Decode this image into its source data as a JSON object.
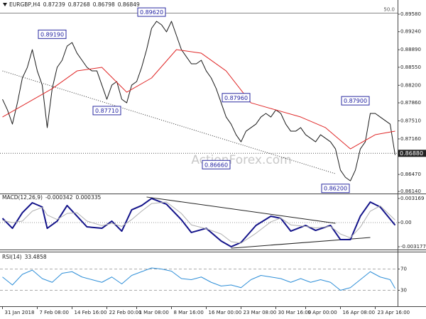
{
  "chart_data": [
    {
      "type": "line",
      "title": "EURGBP,H4",
      "ohlc": [
        0.87239,
        0.87268,
        0.86798,
        0.86849
      ],
      "watermark": "ActionForex.com",
      "xlim": [
        -0.5,
        79.5
      ],
      "ylim": [
        0.861,
        0.89745
      ],
      "yticks": [
        {
          "value": 0.8958,
          "label": "0.89580"
        },
        {
          "value": 0.8924,
          "label": "0.89240"
        },
        {
          "value": 0.8889,
          "label": "0.88890"
        },
        {
          "value": 0.8855,
          "label": "0.88550"
        },
        {
          "value": 0.882,
          "label": "0.88200"
        },
        {
          "value": 0.8786,
          "label": "0.87860"
        },
        {
          "value": 0.8751,
          "label": "0.87510"
        },
        {
          "value": 0.8716,
          "label": "0.87160"
        },
        {
          "value": 0.8647,
          "label": "0.86470"
        },
        {
          "value": 0.8614,
          "label": "0.86140"
        }
      ],
      "series": [
        {
          "color": "#1a1a1a",
          "width": 1,
          "x": [
            0,
            1,
            2,
            3,
            4,
            5,
            6,
            7,
            8,
            9,
            10,
            11,
            12,
            13,
            14,
            15,
            16,
            17,
            18,
            19,
            20,
            21,
            22,
            23,
            24,
            25,
            26,
            27,
            28,
            29,
            30,
            31,
            32,
            33,
            34,
            35,
            36,
            37,
            38,
            39,
            40,
            41,
            42,
            43,
            44,
            45,
            46,
            47,
            48,
            49,
            50,
            51,
            52,
            53,
            54,
            55,
            56,
            57,
            58,
            59,
            60,
            61,
            62,
            63,
            64,
            65,
            66,
            67,
            68,
            69,
            70,
            71,
            72,
            73,
            74,
            75,
            76,
            77,
            78,
            79
          ],
          "values": [
            0.87929,
            0.87722,
            0.87447,
            0.8786,
            0.88342,
            0.88548,
            0.88892,
            0.88479,
            0.88204,
            0.87378,
            0.88135,
            0.88548,
            0.88686,
            0.88961,
            0.8903,
            0.88823,
            0.88686,
            0.88548,
            0.88479,
            0.88479,
            0.88204,
            0.87929,
            0.88204,
            0.88273,
            0.87929,
            0.8786,
            0.88204,
            0.88273,
            0.88548,
            0.88892,
            0.89305,
            0.89442,
            0.89374,
            0.89236,
            0.89442,
            0.89167,
            0.88892,
            0.88754,
            0.88617,
            0.88617,
            0.88686,
            0.88479,
            0.88342,
            0.88135,
            0.8786,
            0.87585,
            0.87447,
            0.87241,
            0.87103,
            0.8731,
            0.87378,
            0.87447,
            0.87585,
            0.87654,
            0.87585,
            0.87722,
            0.87654,
            0.87447,
            0.8731,
            0.8731,
            0.87378,
            0.87241,
            0.87172,
            0.87103,
            0.87241,
            0.87172,
            0.87103,
            0.86966,
            0.86553,
            0.86415,
            0.86346,
            0.86553,
            0.86966,
            0.87103,
            0.87654,
            0.87654,
            0.87585,
            0.87516,
            0.87447,
            0.86849
          ]
        },
        {
          "color": "#e02828",
          "width": 1,
          "x": [
            0,
            5,
            10,
            15,
            20,
            25,
            30,
            35,
            40,
            45,
            50,
            55,
            60,
            65,
            70,
            75,
            79
          ],
          "values": [
            0.87585,
            0.8786,
            0.88135,
            0.88479,
            0.88548,
            0.88066,
            0.88342,
            0.88892,
            0.88823,
            0.88479,
            0.8786,
            0.87722,
            0.87585,
            0.87378,
            0.86966,
            0.87241,
            0.8731
          ]
        }
      ],
      "trendlines": [
        {
          "x": [
            0,
            67
          ],
          "values": [
            0.88479,
            0.86484
          ],
          "color": "#333333",
          "style": "dotted"
        }
      ],
      "hlines": [
        {
          "value": 0.8688,
          "label": "0.86880",
          "color": "#555555",
          "style": "dotted",
          "label_position": "axis"
        },
        {
          "value": 0.896,
          "label": "50.0",
          "color": "#888888",
          "style": "solid",
          "label_position": "inside"
        }
      ],
      "annotations": [
        {
          "x": 30,
          "value": 0.8962,
          "label": "0.89620"
        },
        {
          "x": 10,
          "value": 0.8919,
          "label": "0.89190"
        },
        {
          "x": 21,
          "value": 0.8771,
          "label": "0.87710"
        },
        {
          "x": 47,
          "value": 0.8796,
          "label": "0.87960"
        },
        {
          "x": 43,
          "value": 0.8666,
          "label": "0.86660"
        },
        {
          "x": 67,
          "value": 0.862,
          "label": "0.86200"
        },
        {
          "x": 71,
          "value": 0.879,
          "label": "0.87900"
        }
      ]
    },
    {
      "type": "line",
      "title": "MACD(12,26,9)",
      "xlim": [
        -0.5,
        79.5
      ],
      "ylim": [
        -0.00354,
        0.00382
      ],
      "yticks": [
        0.003169,
        {
          "value": 0,
          "label": "0.00"
        },
        -0.003177
      ],
      "series": [
        {
          "color": "#14148a",
          "width": 2,
          "x": [
            0,
            2,
            4,
            6,
            8,
            9,
            11,
            13,
            15,
            17,
            20,
            22,
            24,
            26,
            28,
            30,
            33,
            36,
            38,
            41,
            44,
            46,
            48,
            51,
            54,
            56,
            58,
            61,
            63,
            66,
            68,
            70,
            72,
            74,
            76,
            79
          ],
          "values": [
            0.00056,
            -0.00075,
            0.0013,
            0.00261,
            0.00205,
            -0.00075,
            0.00019,
            0.00224,
            0.00084,
            -0.00056,
            -0.00075,
            0.00019,
            -0.00112,
            0.00168,
            0.00224,
            0.00317,
            0.00242,
            0.00037,
            -0.0013,
            -0.00075,
            -0.00242,
            -0.00317,
            -0.00261,
            -0.00037,
            0.00084,
            0.00056,
            -0.00112,
            -0.00037,
            -0.00103,
            -0.00037,
            -0.00224,
            -0.00224,
            0.00084,
            0.0027,
            0.00205,
            -0.000342
          ]
        },
        {
          "color": "#b0b0b0",
          "width": 1,
          "x": [
            0,
            2,
            4,
            6,
            8,
            9,
            11,
            13,
            15,
            17,
            20,
            22,
            24,
            26,
            28,
            30,
            33,
            36,
            38,
            41,
            44,
            46,
            48,
            51,
            54,
            56,
            58,
            61,
            63,
            66,
            68,
            70,
            72,
            74,
            76,
            79
          ],
          "values": [
            0.0003,
            0,
            0.0002,
            0.0015,
            0.002,
            0.001,
            0.0004,
            0.0012,
            0.0013,
            0.0002,
            -0.0004,
            -0.0001,
            -0.0005,
            0.0004,
            0.0015,
            0.0025,
            0.0027,
            0.0012,
            -0.0003,
            -0.0008,
            -0.0015,
            -0.0025,
            -0.0027,
            -0.0014,
            0.0001,
            0.0006,
            -0.0003,
            -0.0005,
            -0.0007,
            -0.0005,
            -0.0015,
            -0.002,
            -0.0006,
            0.0015,
            0.0022,
            0.000335
          ]
        }
      ],
      "trendlines": [
        {
          "x": [
            29,
            67
          ],
          "values": [
            0.00336,
            -9e-05
          ],
          "color": "#222222",
          "style": "solid"
        },
        {
          "x": [
            46,
            74
          ],
          "values": [
            -0.00336,
            -0.00196
          ],
          "color": "#222222",
          "style": "solid"
        }
      ],
      "hlines": [
        {
          "value": 0,
          "color": "#999999",
          "style": "dotted"
        }
      ]
    },
    {
      "type": "line",
      "title": "RSI(14)",
      "xlim": [
        -0.5,
        79.5
      ],
      "ylim": [
        0,
        100
      ],
      "yticks": [
        70,
        30
      ],
      "series": [
        {
          "color": "#2f8fd8",
          "width": 1,
          "x": [
            0,
            2,
            4,
            6,
            8,
            10,
            12,
            14,
            16,
            18,
            20,
            22,
            24,
            26,
            28,
            30,
            32,
            34,
            36,
            38,
            40,
            42,
            44,
            46,
            48,
            50,
            52,
            54,
            56,
            58,
            60,
            62,
            64,
            66,
            68,
            70,
            72,
            74,
            76,
            78,
            79
          ],
          "values": [
            55,
            40,
            60,
            68,
            52,
            45,
            62,
            65,
            55,
            50,
            45,
            55,
            42,
            58,
            65,
            72,
            70,
            66,
            52,
            50,
            55,
            45,
            38,
            40,
            35,
            50,
            58,
            55,
            52,
            45,
            52,
            45,
            50,
            45,
            30,
            35,
            50,
            65,
            55,
            50,
            33.4858
          ]
        }
      ],
      "hlines": [
        {
          "value": 70,
          "color": "#aaaaaa",
          "style": "dashed"
        },
        {
          "value": 30,
          "color": "#aaaaaa",
          "style": "dashed"
        }
      ],
      "xticks": [
        {
          "value": 0,
          "label": "31 Jan 2018"
        },
        {
          "value": 7,
          "label": "7 Feb 08:00"
        },
        {
          "value": 14,
          "label": "14 Feb 16:00"
        },
        {
          "value": 21,
          "label": "22 Feb 00:00"
        },
        {
          "value": 27,
          "label": "1 Mar 08:00"
        },
        {
          "value": 34,
          "label": "8 Mar 16:00"
        },
        {
          "value": 41,
          "label": "16 Mar 00:00"
        },
        {
          "value": 48,
          "label": "23 Mar 08:00"
        },
        {
          "value": 55,
          "label": "30 Mar 16:00"
        },
        {
          "value": 61,
          "label": "9 Apr 00:00"
        },
        {
          "value": 68,
          "label": "16 Apr 08:00"
        },
        {
          "value": 75,
          "label": "23 Apr 16:00"
        }
      ]
    }
  ]
}
